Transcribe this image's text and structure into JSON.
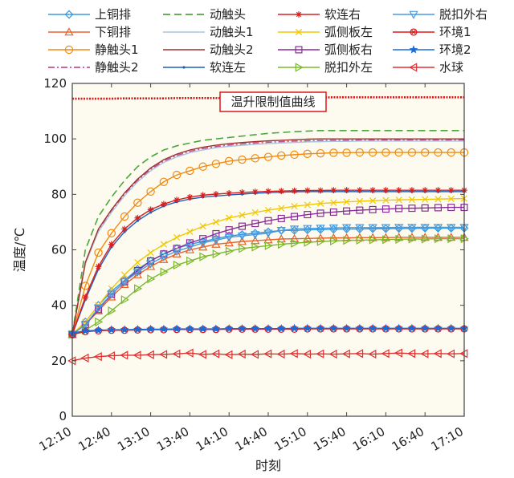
{
  "chart_data": {
    "type": "line",
    "title": "",
    "xlabel": "时刻",
    "ylabel": "温度/℃",
    "ylim": [
      0,
      120
    ],
    "yticks": [
      0,
      20,
      40,
      60,
      80,
      100,
      120
    ],
    "x": [
      0,
      10,
      20,
      30,
      40,
      50,
      60,
      70,
      80,
      90,
      100,
      110,
      120,
      130,
      140,
      150,
      160,
      170,
      180,
      190,
      200,
      210,
      220,
      230,
      240,
      250,
      260,
      270,
      280,
      290,
      300
    ],
    "xlim": [
      0,
      300
    ],
    "xticks": [
      {
        "value": 0,
        "label": "12:10"
      },
      {
        "value": 30,
        "label": "12:40"
      },
      {
        "value": 60,
        "label": "13:10"
      },
      {
        "value": 90,
        "label": "13:40"
      },
      {
        "value": 120,
        "label": "14:10"
      },
      {
        "value": 150,
        "label": "14:40"
      },
      {
        "value": 180,
        "label": "15:10"
      },
      {
        "value": 210,
        "label": "15:40"
      },
      {
        "value": 240,
        "label": "16:10"
      },
      {
        "value": 270,
        "label": "16:40"
      },
      {
        "value": 300,
        "label": "17:10"
      }
    ],
    "grid": false,
    "legend_position": "top",
    "series": [
      {
        "name": "上铜排",
        "color": "#3a9ad9",
        "dash": "",
        "marker": "diamond",
        "values": [
          29.5,
          34,
          40,
          45,
          49,
          53,
          56,
          58.5,
          60.5,
          62,
          63,
          64,
          65,
          65.5,
          66,
          66.5,
          67,
          67,
          67.2,
          67.3,
          67.4,
          67.5,
          67.5,
          67.6,
          67.6,
          67.7,
          67.7,
          67.8,
          67.8,
          67.8,
          67.8
        ]
      },
      {
        "name": "下铜排",
        "color": "#e8632c",
        "dash": "",
        "marker": "triangle-up",
        "values": [
          29.5,
          33,
          38,
          43,
          47.5,
          51,
          54,
          56.5,
          58.5,
          60,
          61,
          62,
          62.5,
          63,
          63.3,
          63.6,
          63.9,
          64,
          64.1,
          64.2,
          64.3,
          64.3,
          64.4,
          64.4,
          64.4,
          64.5,
          64.5,
          64.5,
          64.5,
          64.5,
          64.5
        ]
      },
      {
        "name": "静触头1",
        "color": "#f08a10",
        "dash": "",
        "marker": "circle",
        "values": [
          29.5,
          47,
          59,
          66,
          72,
          77,
          81,
          84.5,
          87,
          88.5,
          90,
          91,
          92,
          92.5,
          93,
          93.5,
          94,
          94.3,
          94.6,
          94.8,
          95,
          95,
          95.1,
          95.1,
          95.1,
          95.1,
          95.1,
          95.1,
          95.1,
          95.1,
          95.1
        ]
      },
      {
        "name": "静触头2",
        "color": "#c0508f",
        "dash": "8,3,2,3",
        "marker": "none",
        "values": [
          29.5,
          55,
          67,
          74,
          80,
          85,
          89,
          92,
          94,
          95.5,
          96.5,
          97.2,
          97.8,
          98.2,
          98.5,
          98.8,
          99,
          99.2,
          99.3,
          99.4,
          99.5,
          99.5,
          99.6,
          99.6,
          99.6,
          99.6,
          99.6,
          99.6,
          99.6,
          99.6,
          99.6
        ]
      },
      {
        "name": "动触头",
        "color": "#4aa83a",
        "dash": "9,5",
        "marker": "none",
        "values": [
          29.5,
          60,
          72,
          79,
          85,
          90,
          93.5,
          96,
          97.5,
          98.5,
          99.5,
          100,
          100.5,
          101,
          101.5,
          102,
          102.3,
          102.6,
          102.8,
          103,
          103,
          103,
          103,
          103,
          103,
          103,
          103,
          103,
          103,
          103,
          103
        ]
      },
      {
        "name": "动触头1",
        "color": "#a8c4de",
        "dash": "",
        "marker": "none",
        "values": [
          29.5,
          55,
          66.5,
          73.5,
          79.5,
          84.5,
          88.5,
          91.5,
          93.5,
          95,
          96,
          96.8,
          97.3,
          97.7,
          98,
          98.3,
          98.5,
          98.7,
          98.9,
          99,
          99.1,
          99.1,
          99.2,
          99.2,
          99.2,
          99.2,
          99.2,
          99.2,
          99.2,
          99.2,
          99.2
        ]
      },
      {
        "name": "动触头2",
        "color": "#a03030",
        "dash": "",
        "marker": "none",
        "values": [
          29.5,
          55.5,
          67.5,
          74.5,
          80.5,
          85.5,
          89.5,
          92.5,
          94.5,
          96,
          97,
          97.7,
          98.3,
          98.7,
          99,
          99.3,
          99.5,
          99.7,
          99.9,
          100,
          100,
          100,
          100,
          100,
          100,
          100,
          100,
          100,
          100,
          100,
          100
        ]
      },
      {
        "name": "软连左",
        "color": "#1f5fbf",
        "dash": "",
        "marker": "dot",
        "values": [
          29.5,
          42,
          53,
          61,
          66.5,
          70.5,
          73.5,
          75.8,
          77.3,
          78.3,
          79,
          79.4,
          79.8,
          80.1,
          80.4,
          80.6,
          80.8,
          80.9,
          81,
          81,
          81,
          81,
          81,
          81,
          81,
          81,
          81,
          81,
          81,
          81,
          81
        ]
      },
      {
        "name": "软连右",
        "color": "#d62020",
        "dash": "",
        "marker": "asterisk",
        "values": [
          29.5,
          43,
          54,
          62,
          67.5,
          71.5,
          74.5,
          76.5,
          78,
          79,
          79.7,
          80.1,
          80.4,
          80.7,
          80.9,
          81.1,
          81.2,
          81.3,
          81.4,
          81.4,
          81.5,
          81.5,
          81.5,
          81.5,
          81.5,
          81.5,
          81.5,
          81.5,
          81.5,
          81.5,
          81.5
        ]
      },
      {
        "name": "弧侧板左",
        "color": "#f0c800",
        "dash": "",
        "marker": "x",
        "values": [
          29.5,
          34,
          40,
          46,
          51,
          55.5,
          59,
          62,
          64.5,
          66.5,
          68.5,
          70,
          71.5,
          72.5,
          73.5,
          74.3,
          75,
          75.7,
          76.2,
          76.7,
          77,
          77.3,
          77.5,
          77.7,
          77.9,
          78,
          78.1,
          78.2,
          78.3,
          78.4,
          78.5
        ]
      },
      {
        "name": "弧侧板右",
        "color": "#8a2a9a",
        "dash": "",
        "marker": "square",
        "values": [
          29.5,
          33,
          38.5,
          44,
          48.5,
          52.5,
          56,
          58.5,
          60.5,
          62.5,
          64,
          65.8,
          67.2,
          68.5,
          69.5,
          70.5,
          71.3,
          72,
          72.7,
          73.2,
          73.6,
          74,
          74.3,
          74.5,
          74.7,
          74.9,
          75,
          75.1,
          75.2,
          75.3,
          75.3
        ]
      },
      {
        "name": "脱扣外左",
        "color": "#7ab82a",
        "dash": "",
        "marker": "triangle-right",
        "values": [
          29.5,
          31,
          34,
          38,
          42,
          46,
          49.5,
          52,
          54.5,
          56,
          57.5,
          58.5,
          59.5,
          60.5,
          61,
          61.5,
          62,
          62.4,
          62.7,
          63,
          63.2,
          63.4,
          63.5,
          63.6,
          63.7,
          63.8,
          63.9,
          63.9,
          64,
          64,
          64
        ]
      },
      {
        "name": "脱扣外右",
        "color": "#4a9adf",
        "dash": "",
        "marker": "triangle-down",
        "values": [
          29.5,
          33,
          39,
          44,
          48.5,
          52,
          55,
          57.5,
          59.5,
          61,
          62.5,
          63.5,
          64.5,
          65,
          65.5,
          66,
          67,
          67.5,
          67.7,
          67.8,
          67.9,
          68,
          68,
          68,
          68,
          68.1,
          68.1,
          68.1,
          68.1,
          68.1,
          68.1
        ]
      },
      {
        "name": "环境1",
        "color": "#d81818",
        "dash": "",
        "marker": "circle-x",
        "values": [
          29.5,
          30.5,
          30.8,
          31,
          31,
          31.1,
          31.2,
          31.2,
          31.3,
          31.3,
          31.3,
          31.3,
          31.4,
          31.4,
          31.4,
          31.4,
          31.4,
          31.4,
          31.5,
          31.5,
          31.5,
          31.5,
          31.5,
          31.5,
          31.5,
          31.5,
          31.5,
          31.5,
          31.5,
          31.5,
          31.5
        ]
      },
      {
        "name": "环境2",
        "color": "#1a6ad8",
        "dash": "",
        "marker": "star",
        "values": [
          30,
          30.8,
          31,
          31.2,
          31.2,
          31.3,
          31.4,
          31.4,
          31.5,
          31.5,
          31.5,
          31.5,
          31.6,
          31.6,
          31.6,
          31.6,
          31.6,
          31.7,
          31.7,
          31.7,
          31.7,
          31.7,
          31.7,
          31.7,
          31.7,
          31.7,
          31.7,
          31.7,
          31.7,
          31.7,
          31.7
        ]
      },
      {
        "name": "水球",
        "color": "#e03030",
        "dash": "",
        "marker": "triangle-left",
        "values": [
          20,
          21,
          21.5,
          21.8,
          22,
          22,
          22.2,
          22.3,
          22.5,
          22.8,
          22.3,
          22.5,
          22.2,
          22.4,
          22.3,
          22.5,
          22.4,
          22.6,
          22.4,
          22.5,
          22.4,
          22.5,
          22.6,
          22.4,
          22.6,
          22.8,
          22.6,
          22.5,
          22.6,
          22.5,
          22.6
        ]
      }
    ],
    "limit_line": {
      "label": "温升限制值曲线",
      "color": "#d81818",
      "values": [
        114.5,
        114.5,
        114.5,
        114.5,
        114.6,
        114.6,
        114.6,
        114.6,
        114.7,
        114.7,
        114.7,
        114.7,
        114.8,
        114.8,
        114.8,
        114.8,
        114.9,
        114.9,
        114.9,
        114.9,
        115,
        115,
        115,
        115,
        115,
        115,
        115,
        115,
        115,
        115,
        115
      ]
    },
    "background_color": "#fdfbf0"
  }
}
